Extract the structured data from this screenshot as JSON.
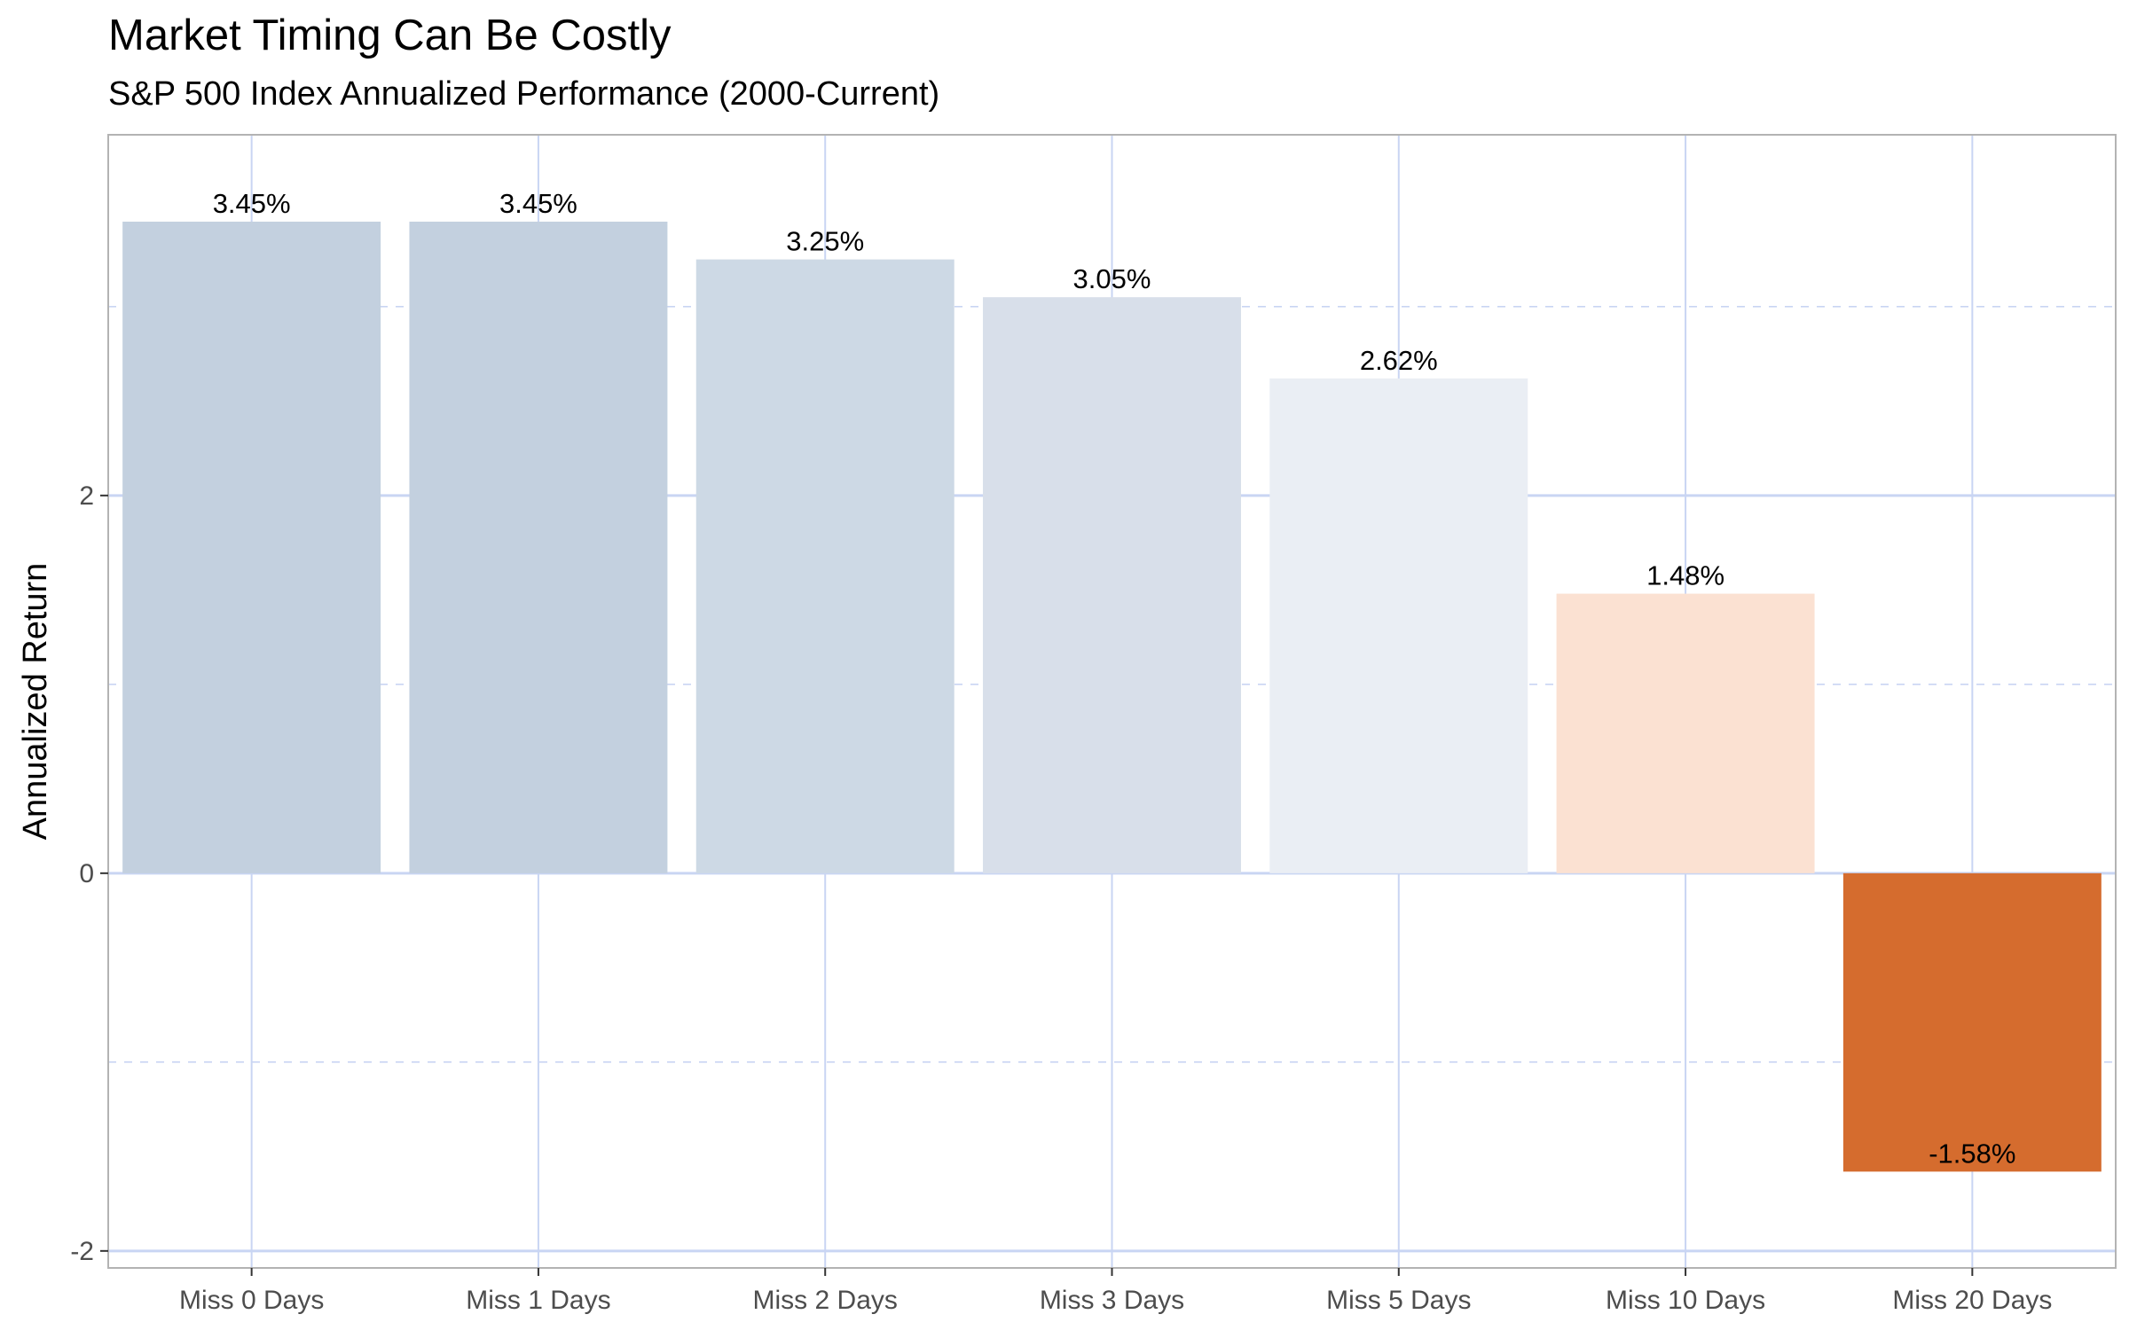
{
  "chart_data": {
    "type": "bar",
    "title": "Market Timing Can Be Costly",
    "subtitle": "S&P 500 Index Annualized Performance (2000-Current)",
    "xlabel": "",
    "ylabel": "Annualized Return",
    "categories": [
      "Miss 0 Days",
      "Miss 1 Days",
      "Miss 2 Days",
      "Miss 3 Days",
      "Miss 5 Days",
      "Miss 10 Days",
      "Miss 20 Days"
    ],
    "values": [
      3.45,
      3.45,
      3.25,
      3.05,
      2.62,
      1.48,
      -1.58
    ],
    "value_labels": [
      "3.45%",
      "3.45%",
      "3.25%",
      "3.05%",
      "2.62%",
      "1.48%",
      "-1.58%"
    ],
    "bar_colors": [
      "#c3d0df",
      "#c3d0df",
      "#cdd9e5",
      "#d8dfea",
      "#eaeef4",
      "#fbe1d2",
      "#d56c2e"
    ],
    "ylim": [
      -2.09,
      3.91
    ],
    "yticks": [
      -2,
      0,
      2
    ],
    "ytick_labels": [
      "-2",
      "0",
      "2"
    ],
    "minor_yticks": [
      -1,
      1,
      3
    ],
    "grid": true,
    "legend": "none",
    "colors": {
      "grid": "#c9d5f3",
      "panel_border": "#b3b3b3",
      "tick_text": "#4d4d4d"
    }
  }
}
